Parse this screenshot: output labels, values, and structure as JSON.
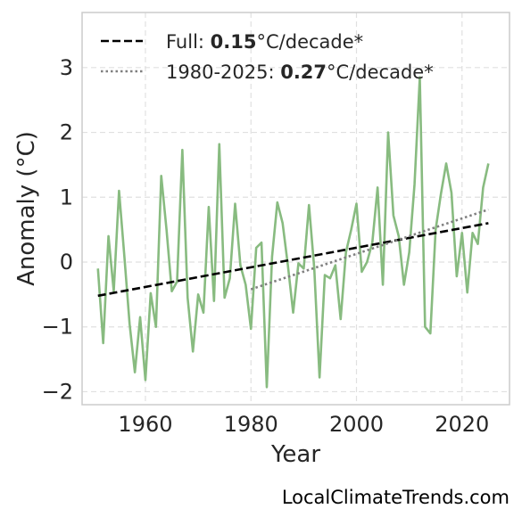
{
  "attribution": "LocalClimateTrends.com",
  "chart_data": {
    "type": "line",
    "xlabel": "Year",
    "ylabel": "Anomaly (°C)",
    "xlim": [
      1948,
      2029
    ],
    "ylim": [
      -2.2,
      3.85
    ],
    "xticks": [
      1960,
      1980,
      2000,
      2020
    ],
    "yticks": [
      -2,
      -1,
      0,
      1,
      2,
      3
    ],
    "ytick_labels": [
      "−2",
      "−1",
      "0",
      "1",
      "2",
      "3"
    ],
    "grid": true,
    "legend_position": "top-left",
    "series": [
      {
        "kind": "observed",
        "color": "#88bb80",
        "x": [
          1951,
          1952,
          1953,
          1954,
          1955,
          1956,
          1957,
          1958,
          1959,
          1960,
          1961,
          1962,
          1963,
          1964,
          1965,
          1966,
          1967,
          1968,
          1969,
          1970,
          1971,
          1972,
          1973,
          1974,
          1975,
          1976,
          1977,
          1978,
          1979,
          1980,
          1981,
          1982,
          1983,
          1984,
          1985,
          1986,
          1987,
          1988,
          1989,
          1990,
          1991,
          1992,
          1993,
          1994,
          1995,
          1996,
          1997,
          1998,
          1999,
          2000,
          2001,
          2002,
          2003,
          2004,
          2005,
          2006,
          2007,
          2008,
          2009,
          2010,
          2011,
          2012,
          2013,
          2014,
          2015,
          2016,
          2017,
          2018,
          2019,
          2020,
          2021,
          2022,
          2023,
          2024,
          2025
        ],
        "y": [
          -0.1,
          -1.25,
          0.4,
          -0.45,
          1.1,
          0.1,
          -0.95,
          -1.7,
          -0.85,
          -1.82,
          -0.48,
          -1.0,
          1.33,
          0.5,
          -0.45,
          -0.3,
          1.73,
          -0.55,
          -1.38,
          -0.5,
          -0.78,
          0.85,
          -0.6,
          1.82,
          -0.55,
          -0.25,
          0.9,
          -0.05,
          -0.35,
          -1.03,
          0.22,
          0.3,
          -1.93,
          0.08,
          0.92,
          0.6,
          -0.05,
          -0.78,
          -0.02,
          -0.1,
          0.88,
          -0.1,
          -1.78,
          -0.2,
          -0.25,
          -0.05,
          -0.88,
          0.15,
          0.5,
          0.9,
          -0.15,
          0.0,
          0.3,
          1.15,
          -0.35,
          2.0,
          0.72,
          0.4,
          -0.35,
          0.15,
          1.2,
          2.85,
          -1.0,
          -1.1,
          0.5,
          1.05,
          1.52,
          1.07,
          -0.22,
          0.45,
          -0.47,
          0.45,
          0.28,
          1.15,
          1.52
        ]
      },
      {
        "kind": "trend",
        "label_prefix": "Full: ",
        "label_value": "0.15",
        "label_suffix": "°C/decade*",
        "style": "dashed",
        "color": "#000000",
        "x": [
          1951,
          2025
        ],
        "y": [
          -0.52,
          0.6
        ]
      },
      {
        "kind": "trend",
        "label_prefix": "1980-2025: ",
        "label_value": "0.27",
        "label_suffix": "°C/decade*",
        "style": "dotted",
        "color": "#808080",
        "x": [
          1980,
          2025
        ],
        "y": [
          -0.42,
          0.81
        ]
      }
    ]
  }
}
